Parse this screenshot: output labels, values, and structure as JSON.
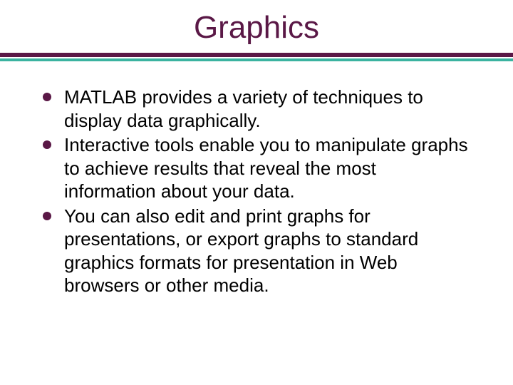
{
  "title": {
    "text": "Graphics",
    "color": "#5a1846",
    "fontsize": 44
  },
  "divider": {
    "dark_color": "#5a1846",
    "light_color": "#3bb3a0"
  },
  "bullets": {
    "dot_color": "#5a1846",
    "text_color": "#000000",
    "fontsize": 26,
    "items": [
      {
        "text": "MATLAB provides a variety of techniques to display data graphically."
      },
      {
        "text": "Interactive tools enable you to manipulate graphs to achieve results that reveal the most information about your data."
      },
      {
        "text": "You can also edit and print graphs for presentations, or export graphs to standard graphics formats for presentation in Web browsers or other media."
      }
    ]
  }
}
